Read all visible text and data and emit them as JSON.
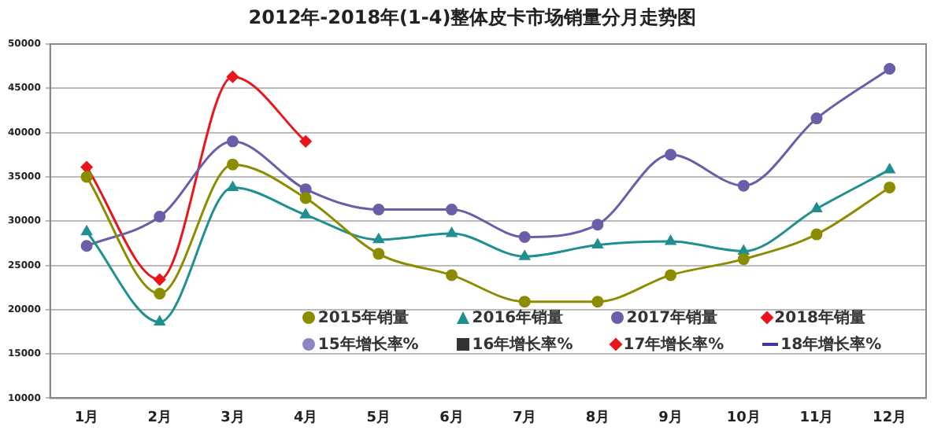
{
  "chart_data": {
    "type": "line",
    "title": "2012年-2018年(1-4)整体皮卡市场销量分月走势图",
    "categories": [
      "1月",
      "2月",
      "3月",
      "4月",
      "5月",
      "6月",
      "7月",
      "8月",
      "9月",
      "10月",
      "11月",
      "12月"
    ],
    "ylim": [
      10000,
      50000
    ],
    "yticks": [
      10000,
      15000,
      20000,
      25000,
      30000,
      35000,
      40000,
      45000,
      50000
    ],
    "grid": "y",
    "legend": "bottom",
    "series": [
      {
        "name": "2015年销量",
        "color": "#8c8c00",
        "marker": "circle",
        "values": [
          35000,
          21800,
          36400,
          32600,
          26300,
          23900,
          20900,
          20900,
          23900,
          25700,
          28500,
          33800
        ]
      },
      {
        "name": "2016年销量",
        "color": "#1f8f8f",
        "marker": "triangle",
        "values": [
          28800,
          18600,
          33800,
          30700,
          27900,
          28600,
          26000,
          27300,
          27700,
          26600,
          31400,
          35800
        ]
      },
      {
        "name": "2017年销量",
        "color": "#6b5ea8",
        "marker": "circle",
        "values": [
          27200,
          30500,
          39000,
          33600,
          31300,
          31300,
          28200,
          29600,
          37500,
          34000,
          41600,
          47200
        ]
      },
      {
        "name": "2018年销量",
        "color": "#e8161b",
        "marker": "diamond",
        "values": [
          36100,
          23400,
          46300,
          39000,
          null,
          null,
          null,
          null,
          null,
          null,
          null,
          null
        ]
      },
      {
        "name": "15年增长率%",
        "color": "#8a86c0",
        "marker": "circle",
        "values": [
          null,
          null,
          null,
          null,
          null,
          null,
          null,
          null,
          null,
          null,
          null,
          null
        ]
      },
      {
        "name": "16年增长率%",
        "color": "#333333",
        "marker": "cross",
        "values": [
          null,
          null,
          null,
          null,
          null,
          null,
          null,
          null,
          null,
          null,
          null,
          null
        ]
      },
      {
        "name": "17年增长率%",
        "color": "#e8161b",
        "marker": "diamond",
        "values": [
          null,
          null,
          null,
          null,
          null,
          null,
          null,
          null,
          null,
          null,
          null,
          null
        ]
      },
      {
        "name": "18年增长率%",
        "color": "#3a3a9a",
        "marker": "none",
        "values": [
          null,
          null,
          null,
          null,
          null,
          null,
          null,
          null,
          null,
          null,
          null,
          null
        ]
      }
    ]
  }
}
